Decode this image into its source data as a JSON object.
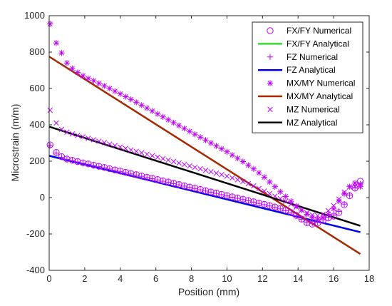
{
  "chart_data": {
    "type": "line",
    "xlabel": "Position (mm)",
    "ylabel": "Microstrain (m/m)",
    "xlim": [
      0,
      18
    ],
    "ylim": [
      -400,
      1000
    ],
    "xticks": [
      0,
      2,
      4,
      6,
      8,
      10,
      12,
      14,
      16,
      18
    ],
    "yticks": [
      -400,
      -200,
      0,
      200,
      400,
      600,
      800,
      1000
    ],
    "grid": false,
    "legend_position": "top-right",
    "series": [
      {
        "name": "FX/FY Numerical",
        "style": "markers",
        "marker": "circle",
        "color": "#bf00ff",
        "x": [
          0.05,
          0.4,
          0.7,
          1.0,
          1.3,
          1.6,
          1.9,
          2.2,
          2.5,
          2.8,
          3.1,
          3.4,
          3.7,
          4.0,
          4.3,
          4.6,
          4.9,
          5.2,
          5.5,
          5.8,
          6.1,
          6.4,
          6.7,
          7.0,
          7.3,
          7.6,
          7.9,
          8.2,
          8.5,
          8.8,
          9.1,
          9.4,
          9.7,
          10.0,
          10.3,
          10.6,
          10.9,
          11.2,
          11.5,
          11.8,
          12.1,
          12.4,
          12.7,
          13.0,
          13.3,
          13.6,
          13.9,
          14.2,
          14.5,
          14.8,
          15.1,
          15.4,
          15.7,
          16.0,
          16.3,
          16.6,
          16.9,
          17.2,
          17.5
        ],
        "y": [
          290,
          248,
          225,
          212,
          205,
          198,
          191,
          185,
          178,
          172,
          166,
          159,
          152,
          146,
          139,
          132,
          126,
          119,
          112,
          106,
          99,
          92,
          86,
          79,
          72,
          65,
          58,
          52,
          45,
          38,
          31,
          25,
          18,
          11,
          4,
          -2,
          -9,
          -16,
          -23,
          -30,
          -37,
          -44,
          -52,
          -60,
          -70,
          -82,
          -98,
          -118,
          -138,
          -146,
          -140,
          -126,
          -112,
          -102,
          -82,
          -40,
          10,
          52,
          90
        ]
      },
      {
        "name": "FX/FY Analytical",
        "style": "line",
        "color": "#33dd33",
        "x": [
          0,
          17.5
        ],
        "y": [
          230,
          -190
        ]
      },
      {
        "name": "FZ Numerical",
        "style": "markers",
        "marker": "plus",
        "color": "#bf00ff",
        "x": [
          0.05,
          0.4,
          0.7,
          1.0,
          1.3,
          1.6,
          1.9,
          2.2,
          2.5,
          2.8,
          3.1,
          3.4,
          3.7,
          4.0,
          4.3,
          4.6,
          4.9,
          5.2,
          5.5,
          5.8,
          6.1,
          6.4,
          6.7,
          7.0,
          7.3,
          7.6,
          7.9,
          8.2,
          8.5,
          8.8,
          9.1,
          9.4,
          9.7,
          10.0,
          10.3,
          10.6,
          10.9,
          11.2,
          11.5,
          11.8,
          12.1,
          12.4,
          12.7,
          13.0,
          13.3,
          13.6,
          13.9,
          14.2,
          14.5,
          14.8,
          15.1,
          15.4,
          15.7,
          16.0,
          16.3,
          16.6,
          16.9,
          17.2,
          17.5
        ],
        "y": [
          285,
          245,
          222,
          210,
          203,
          196,
          189,
          183,
          176,
          170,
          164,
          157,
          150,
          144,
          137,
          130,
          124,
          117,
          110,
          104,
          97,
          90,
          84,
          77,
          70,
          63,
          56,
          50,
          43,
          36,
          29,
          23,
          16,
          9,
          2,
          -4,
          -11,
          -18,
          -25,
          -32,
          -39,
          -46,
          -54,
          -62,
          -72,
          -84,
          -100,
          -120,
          -136,
          -142,
          -136,
          -122,
          -108,
          -96,
          -76,
          -36,
          14,
          54,
          60
        ]
      },
      {
        "name": "FZ Analytical",
        "style": "line",
        "color": "#0000ee",
        "x": [
          0,
          17.5
        ],
        "y": [
          230,
          -190
        ]
      },
      {
        "name": "MX/MY Numerical",
        "style": "markers",
        "marker": "asterisk",
        "color": "#bf00ff",
        "x": [
          0.05,
          0.4,
          0.7,
          1.0,
          1.3,
          1.6,
          1.9,
          2.2,
          2.5,
          2.8,
          3.1,
          3.4,
          3.7,
          4.0,
          4.3,
          4.6,
          4.9,
          5.2,
          5.5,
          5.8,
          6.1,
          6.4,
          6.7,
          7.0,
          7.3,
          7.6,
          7.9,
          8.2,
          8.5,
          8.8,
          9.1,
          9.4,
          9.7,
          10.0,
          10.3,
          10.6,
          10.9,
          11.2,
          11.5,
          11.8,
          12.1,
          12.4,
          12.7,
          13.0,
          13.3,
          13.6,
          13.9,
          14.2,
          14.5,
          14.8,
          15.1,
          15.4,
          15.7,
          16.0,
          16.3,
          16.6,
          16.9,
          17.2,
          17.5
        ],
        "y": [
          955,
          850,
          795,
          740,
          710,
          688,
          670,
          655,
          642,
          628,
          614,
          600,
          585,
          570,
          555,
          540,
          524,
          508,
          492,
          476,
          460,
          444,
          428,
          412,
          396,
          380,
          364,
          348,
          332,
          316,
          300,
          284,
          268,
          252,
          234,
          216,
          198,
          178,
          158,
          136,
          112,
          86,
          60,
          32,
          6,
          -20,
          -46,
          -70,
          -92,
          -110,
          -118,
          -110,
          -92,
          -62,
          -20,
          20,
          60,
          80,
          75
        ]
      },
      {
        "name": "MX/MY Analytical",
        "style": "line",
        "color": "#a52a00",
        "x": [
          0,
          17.5
        ],
        "y": [
          775,
          -310
        ]
      },
      {
        "name": "MZ Numerical",
        "style": "markers",
        "marker": "cross",
        "color": "#bf00ff",
        "x": [
          0.05,
          0.4,
          0.7,
          1.0,
          1.3,
          1.6,
          1.9,
          2.2,
          2.5,
          2.8,
          3.1,
          3.4,
          3.7,
          4.0,
          4.3,
          4.6,
          4.9,
          5.2,
          5.5,
          5.8,
          6.1,
          6.4,
          6.7,
          7.0,
          7.3,
          7.6,
          7.9,
          8.2,
          8.5,
          8.8,
          9.1,
          9.4,
          9.7,
          10.0,
          10.3,
          10.6,
          10.9,
          11.2,
          11.5,
          11.8,
          12.1,
          12.4,
          12.7,
          13.0,
          13.3,
          13.6,
          13.9,
          14.2,
          14.5,
          14.8,
          15.1,
          15.4,
          15.7,
          16.0,
          16.3,
          16.6,
          16.9,
          17.2,
          17.5
        ],
        "y": [
          480,
          410,
          375,
          360,
          350,
          342,
          334,
          326,
          318,
          310,
          302,
          294,
          286,
          278,
          270,
          262,
          254,
          246,
          238,
          230,
          222,
          214,
          206,
          198,
          190,
          182,
          174,
          166,
          158,
          150,
          142,
          134,
          126,
          118,
          108,
          98,
          88,
          76,
          64,
          50,
          36,
          22,
          8,
          -6,
          -20,
          -36,
          -52,
          -68,
          -84,
          -96,
          -100,
          -92,
          -72,
          -44,
          -8,
          30,
          58,
          62,
          60
        ]
      },
      {
        "name": "MZ Analytical",
        "style": "line",
        "color": "#000000",
        "x": [
          0,
          17.5
        ],
        "y": [
          390,
          -155
        ]
      }
    ]
  }
}
